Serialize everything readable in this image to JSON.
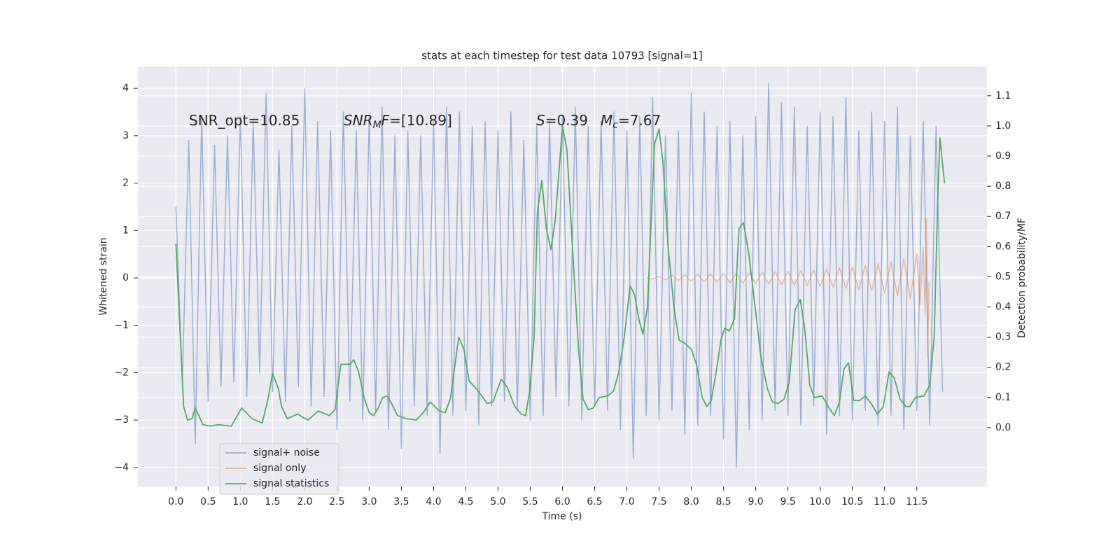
{
  "chart_data": {
    "type": "line",
    "title": "stats at each timestep for test data 10793 [signal=1]",
    "x_label": "Time (s)",
    "y_label": "Whitened strain",
    "y2_label": "Detection probability/MF",
    "xlim": [
      -0.59,
      12.59
    ],
    "ylim": [
      -4.4,
      4.46
    ],
    "y2lim": [
      -0.195,
      1.197
    ],
    "xticks": [
      {
        "value": 0,
        "label": "0.0"
      },
      {
        "value": 0.5,
        "label": "0.5"
      },
      {
        "value": 1,
        "label": "1.0"
      },
      {
        "value": 1.5,
        "label": "1.5"
      },
      {
        "value": 2,
        "label": "2.0"
      },
      {
        "value": 2.5,
        "label": "2.5"
      },
      {
        "value": 3,
        "label": "3.0"
      },
      {
        "value": 3.5,
        "label": "3.5"
      },
      {
        "value": 4,
        "label": "4.0"
      },
      {
        "value": 4.5,
        "label": "4.5"
      },
      {
        "value": 5,
        "label": "5.0"
      },
      {
        "value": 5.5,
        "label": "5.5"
      },
      {
        "value": 6,
        "label": "6.0"
      },
      {
        "value": 6.5,
        "label": "6.5"
      },
      {
        "value": 7,
        "label": "7.0"
      },
      {
        "value": 7.5,
        "label": "7.5"
      },
      {
        "value": 8,
        "label": "8.0"
      },
      {
        "value": 8.5,
        "label": "8.5"
      },
      {
        "value": 9,
        "label": "9.0"
      },
      {
        "value": 9.5,
        "label": "9.5"
      },
      {
        "value": 10,
        "label": "10.0"
      },
      {
        "value": 10.5,
        "label": "10.5"
      },
      {
        "value": 11,
        "label": "11.0"
      },
      {
        "value": 11.5,
        "label": "11.5"
      }
    ],
    "yticks": [
      {
        "value": -4,
        "label": "−4"
      },
      {
        "value": -3,
        "label": "−3"
      },
      {
        "value": -2,
        "label": "−2"
      },
      {
        "value": -1,
        "label": "−1"
      },
      0,
      1,
      2,
      3,
      4
    ],
    "y2ticks": [
      {
        "value": 0,
        "label": "0.0"
      },
      {
        "value": 0.1,
        "label": "0.1"
      },
      {
        "value": 0.2,
        "label": "0.2"
      },
      {
        "value": 0.3,
        "label": "0.3"
      },
      {
        "value": 0.4,
        "label": "0.4"
      },
      {
        "value": 0.5,
        "label": "0.5"
      },
      {
        "value": 0.6,
        "label": "0.6"
      },
      {
        "value": 0.7,
        "label": "0.7"
      },
      {
        "value": 0.8,
        "label": "0.8"
      },
      {
        "value": 0.9,
        "label": "0.9"
      },
      {
        "value": 1,
        "label": "1.0"
      },
      {
        "value": 1.1,
        "label": "1.1"
      }
    ],
    "grid": true,
    "legend": "lower left",
    "annotations": [
      {
        "parts": [
          {
            "text": "SNR_opt=10.85"
          }
        ]
      },
      {
        "parts": [
          {
            "text": "SNR",
            "italic": true
          },
          {
            "text": "M",
            "italic": true,
            "sub": true
          },
          {
            "text": "F",
            "italic": true
          },
          {
            "text": "=[10.89]"
          }
        ]
      },
      {
        "parts": [
          {
            "text": "S",
            "italic": true
          },
          {
            "text": "=0.39"
          }
        ]
      },
      {
        "parts": [
          {
            "text": "M",
            "italic": true
          },
          {
            "text": "c",
            "italic": true,
            "sub": true
          },
          {
            "text": "=7.67"
          }
        ]
      }
    ],
    "series": [
      {
        "name": "signal+ noise",
        "color": "#4c72b0",
        "alpha": 0.5,
        "x": [
          0.0,
          0.1,
          0.2,
          0.3,
          0.4,
          0.5,
          0.6,
          0.7,
          0.8,
          0.9,
          1.0,
          1.1,
          1.2,
          1.3,
          1.4,
          1.5,
          1.6,
          1.7,
          1.8,
          1.9,
          2.0,
          2.1,
          2.2,
          2.3,
          2.4,
          2.5,
          2.6,
          2.7,
          2.8,
          2.9,
          3.0,
          3.1,
          3.2,
          3.3,
          3.4,
          3.5,
          3.6,
          3.7,
          3.8,
          3.9,
          4.0,
          4.1,
          4.2,
          4.3,
          4.4,
          4.5,
          4.6,
          4.7,
          4.8,
          4.9,
          5.0,
          5.1,
          5.2,
          5.3,
          5.4,
          5.5,
          5.6,
          5.7,
          5.8,
          5.9,
          6.0,
          6.1,
          6.2,
          6.3,
          6.4,
          6.5,
          6.6,
          6.7,
          6.8,
          6.9,
          7.0,
          7.1,
          7.2,
          7.3,
          7.4,
          7.5,
          7.6,
          7.7,
          7.8,
          7.9,
          8.0,
          8.1,
          8.2,
          8.3,
          8.4,
          8.5,
          8.6,
          8.7,
          8.8,
          8.9,
          9.0,
          9.1,
          9.2,
          9.3,
          9.4,
          9.5,
          9.6,
          9.7,
          9.8,
          9.9,
          10.0,
          10.1,
          10.2,
          10.3,
          10.4,
          10.5,
          10.6,
          10.7,
          10.8,
          10.9,
          11.0,
          11.1,
          11.2,
          11.3,
          11.4,
          11.5,
          11.6,
          11.7,
          11.8,
          11.9
        ],
        "values": [
          1.5,
          -2.2,
          2.9,
          -3.5,
          3.4,
          -2.6,
          2.8,
          -2.3,
          3.0,
          -2.2,
          3.4,
          -2.5,
          3.3,
          -2.0,
          3.9,
          -2.4,
          2.7,
          -2.6,
          3.2,
          -2.3,
          4.0,
          -2.7,
          3.3,
          -2.5,
          3.1,
          -3.2,
          3.5,
          -2.6,
          3.1,
          -3.0,
          3.4,
          -2.8,
          3.6,
          -3.2,
          3.0,
          -3.6,
          3.1,
          -2.7,
          3.0,
          -2.9,
          3.3,
          -3.7,
          3.6,
          -2.9,
          3.5,
          -2.8,
          3.2,
          -3.1,
          3.3,
          -2.7,
          3.1,
          -2.6,
          3.5,
          -2.8,
          2.9,
          -3.0,
          3.2,
          -2.9,
          3.3,
          -2.5,
          3.4,
          -2.7,
          3.6,
          -3.0,
          3.2,
          -2.7,
          3.3,
          -2.8,
          3.5,
          -3.2,
          3.1,
          -3.8,
          3.4,
          -2.9,
          3.8,
          -3.0,
          3.0,
          -2.8,
          3.1,
          -3.3,
          3.9,
          -3.1,
          3.5,
          -2.9,
          3.2,
          -3.4,
          3.3,
          -4.0,
          3.0,
          -3.2,
          3.4,
          -3.0,
          4.1,
          -2.8,
          3.7,
          -2.9,
          3.6,
          -3.1,
          3.2,
          -2.7,
          3.5,
          -3.3,
          3.4,
          -2.9,
          3.8,
          -3.0,
          3.1,
          -2.8,
          3.5,
          -3.1,
          3.3,
          -2.9,
          3.6,
          -3.2,
          3.0,
          -2.8,
          3.3,
          -3.1,
          3.2,
          -2.4
        ]
      },
      {
        "name": "signal only",
        "color": "#dd8452",
        "alpha": 0.5,
        "x": [
          7.3,
          7.4,
          7.5,
          7.6,
          7.7,
          7.8,
          7.9,
          8.0,
          8.1,
          8.2,
          8.3,
          8.4,
          8.5,
          8.6,
          8.7,
          8.8,
          8.9,
          9.0,
          9.1,
          9.2,
          9.3,
          9.4,
          9.5,
          9.6,
          9.7,
          9.8,
          9.9,
          10.0,
          10.1,
          10.2,
          10.3,
          10.4,
          10.5,
          10.6,
          10.7,
          10.8,
          10.9,
          11.0,
          11.1,
          11.2,
          11.3,
          11.4,
          11.5,
          11.55,
          11.6,
          11.63,
          11.65,
          11.67,
          11.69
        ],
        "values": [
          0.01,
          -0.02,
          0.03,
          -0.04,
          0.05,
          -0.05,
          0.06,
          -0.07,
          0.07,
          -0.08,
          0.08,
          -0.09,
          0.09,
          -0.1,
          0.1,
          -0.11,
          0.11,
          -0.12,
          0.12,
          -0.13,
          0.13,
          -0.14,
          0.14,
          -0.15,
          0.15,
          -0.16,
          0.17,
          -0.18,
          0.19,
          -0.2,
          0.21,
          -0.22,
          0.23,
          -0.25,
          0.26,
          -0.28,
          0.3,
          -0.32,
          0.34,
          -0.37,
          0.4,
          -0.44,
          0.5,
          -0.56,
          0.65,
          -0.8,
          1.25,
          -1.7,
          -0.1
        ]
      },
      {
        "name": "signal statistics",
        "color": "#55a868",
        "alpha": 1,
        "axis": "y2",
        "x": [
          0.0,
          0.12,
          0.18,
          0.25,
          0.3,
          0.42,
          0.53,
          0.65,
          0.86,
          1.02,
          1.18,
          1.34,
          1.43,
          1.5,
          1.59,
          1.64,
          1.73,
          1.89,
          2.05,
          2.21,
          2.38,
          2.47,
          2.56,
          2.7,
          2.76,
          2.83,
          2.92,
          3.0,
          3.07,
          3.14,
          3.21,
          3.28,
          3.36,
          3.44,
          3.57,
          3.73,
          3.84,
          3.95,
          4.09,
          4.18,
          4.26,
          4.39,
          4.47,
          4.55,
          4.66,
          4.75,
          4.83,
          4.92,
          5.05,
          5.14,
          5.26,
          5.36,
          5.43,
          5.49,
          5.56,
          5.61,
          5.68,
          5.75,
          5.82,
          5.89,
          5.95,
          6.0,
          6.07,
          6.16,
          6.25,
          6.32,
          6.4,
          6.48,
          6.57,
          6.7,
          6.79,
          6.87,
          6.96,
          7.05,
          7.12,
          7.19,
          7.25,
          7.32,
          7.37,
          7.43,
          7.5,
          7.56,
          7.64,
          7.73,
          7.81,
          7.9,
          8.0,
          8.08,
          8.17,
          8.24,
          8.31,
          8.39,
          8.46,
          8.52,
          8.59,
          8.67,
          8.74,
          8.81,
          8.89,
          8.98,
          9.08,
          9.18,
          9.26,
          9.35,
          9.44,
          9.52,
          9.61,
          9.69,
          9.76,
          9.84,
          9.91,
          10.03,
          10.14,
          10.22,
          10.3,
          10.37,
          10.44,
          10.52,
          10.61,
          10.7,
          10.79,
          10.89,
          10.98,
          11.07,
          11.15,
          11.24,
          11.33,
          11.39,
          11.48,
          11.61,
          11.7,
          11.77,
          11.83,
          11.86,
          11.93
        ],
        "values": [
          0.61,
          0.07,
          0.025,
          0.03,
          0.065,
          0.01,
          0.005,
          0.01,
          0.005,
          0.065,
          0.03,
          0.015,
          0.095,
          0.18,
          0.13,
          0.07,
          0.03,
          0.045,
          0.025,
          0.055,
          0.04,
          0.06,
          0.21,
          0.21,
          0.225,
          0.19,
          0.1,
          0.05,
          0.04,
          0.065,
          0.1,
          0.105,
          0.075,
          0.04,
          0.03,
          0.025,
          0.05,
          0.085,
          0.055,
          0.05,
          0.095,
          0.3,
          0.26,
          0.155,
          0.13,
          0.105,
          0.08,
          0.085,
          0.16,
          0.135,
          0.07,
          0.045,
          0.04,
          0.12,
          0.3,
          0.71,
          0.82,
          0.66,
          0.59,
          0.69,
          0.86,
          1.0,
          0.92,
          0.58,
          0.26,
          0.095,
          0.06,
          0.065,
          0.1,
          0.105,
          0.12,
          0.18,
          0.3,
          0.47,
          0.44,
          0.355,
          0.31,
          0.4,
          0.65,
          0.94,
          0.99,
          0.88,
          0.6,
          0.4,
          0.29,
          0.28,
          0.26,
          0.21,
          0.1,
          0.07,
          0.09,
          0.19,
          0.29,
          0.33,
          0.32,
          0.36,
          0.66,
          0.68,
          0.58,
          0.42,
          0.235,
          0.13,
          0.085,
          0.08,
          0.095,
          0.15,
          0.39,
          0.425,
          0.33,
          0.14,
          0.1,
          0.105,
          0.065,
          0.04,
          0.085,
          0.195,
          0.215,
          0.09,
          0.09,
          0.105,
          0.08,
          0.045,
          0.07,
          0.185,
          0.165,
          0.095,
          0.07,
          0.07,
          0.1,
          0.105,
          0.14,
          0.3,
          0.79,
          0.96,
          0.81
        ]
      }
    ]
  }
}
